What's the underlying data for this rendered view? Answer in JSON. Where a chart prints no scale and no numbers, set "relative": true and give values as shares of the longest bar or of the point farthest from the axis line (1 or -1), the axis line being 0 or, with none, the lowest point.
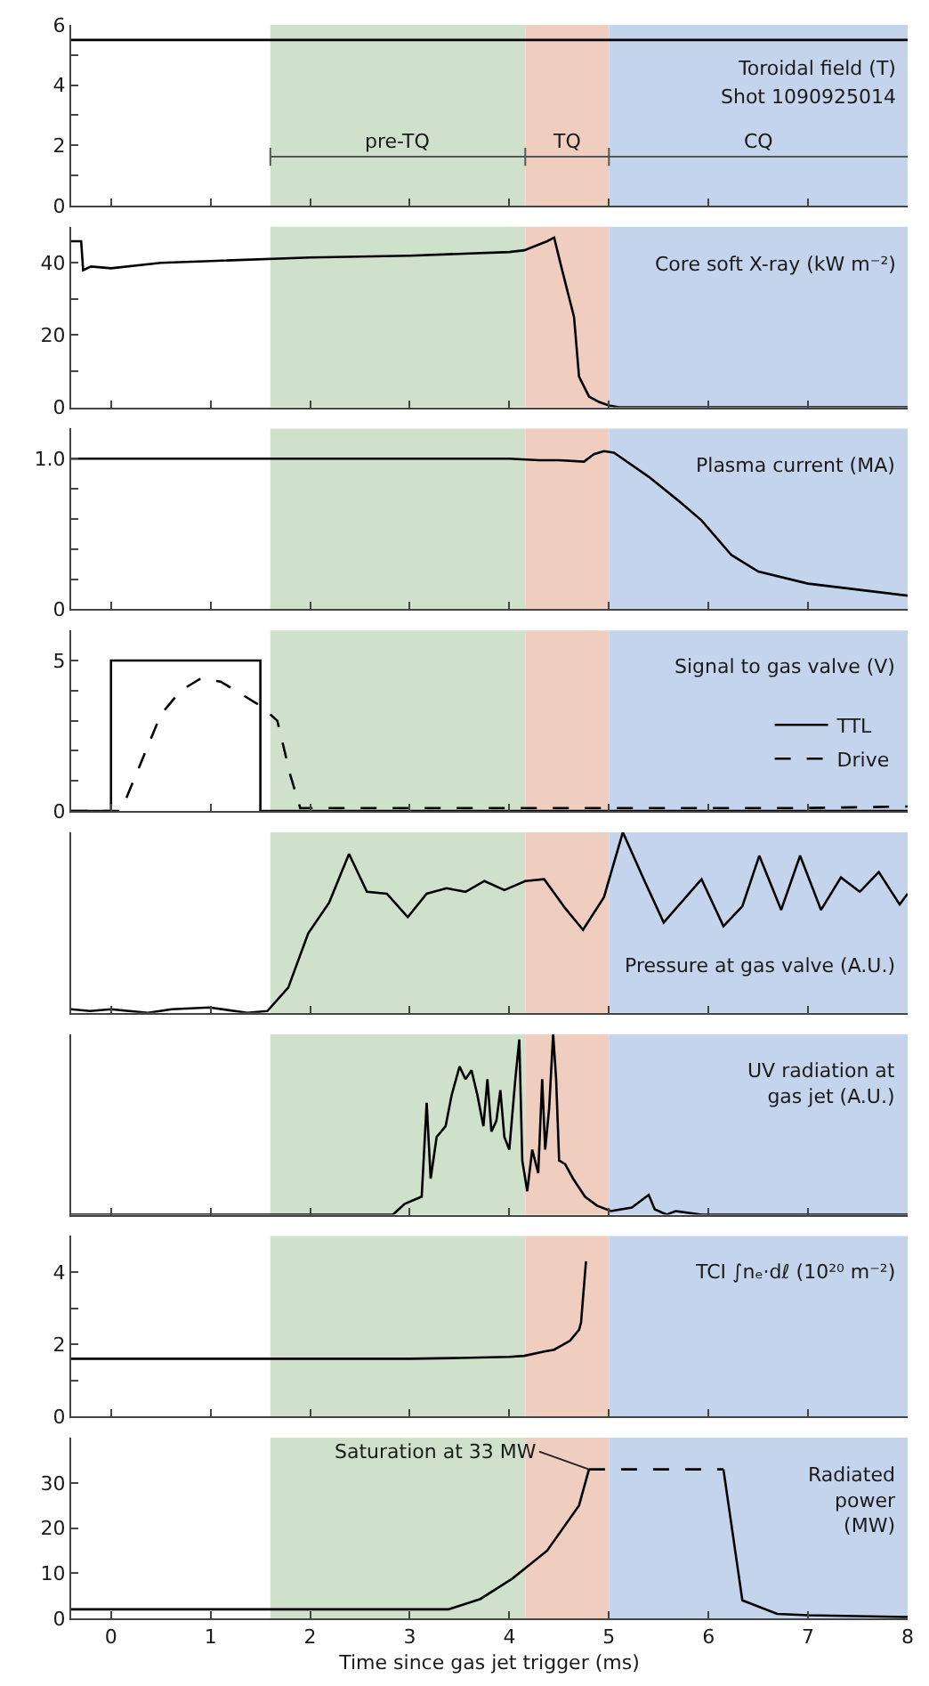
{
  "chart_data": [
    {
      "type": "line",
      "xlim": [
        -0.4,
        8
      ],
      "xticks": [
        0,
        1,
        2,
        3,
        4,
        5,
        6,
        7,
        8
      ],
      "ylim": [
        0,
        6
      ],
      "yticks": [
        0,
        {
          "value": 1,
          "label": null
        },
        2,
        {
          "value": 3,
          "label": null
        },
        4,
        {
          "value": 5,
          "label": null
        },
        6
      ],
      "tick_labels": "y",
      "line_style": "solid",
      "annotations": [
        "Toroidal field (T)",
        "Shot 1090925014"
      ],
      "bands": [
        {
          "axis": "x",
          "from": 1.6,
          "to": 4.16,
          "label": "pre-TQ",
          "color": "#cfe1cb"
        },
        {
          "axis": "x",
          "from": 4.16,
          "to": 5.0,
          "label": "TQ",
          "color": "#efcdbf"
        },
        {
          "axis": "x",
          "from": 5.0,
          "to": 8,
          "label": "CQ",
          "color": "#c5d4ed"
        }
      ],
      "series": [
        {
          "color": "#000000",
          "x": [
            -0.4,
            8
          ],
          "values": [
            5.5,
            5.5
          ]
        }
      ]
    },
    {
      "type": "line",
      "xlim": [
        -0.4,
        8
      ],
      "xticks": [
        0,
        1,
        2,
        3,
        4,
        5,
        6,
        7,
        8
      ],
      "ylim": [
        0,
        50
      ],
      "yticks": [
        0,
        {
          "value": 10,
          "label": null
        },
        20,
        {
          "value": 30,
          "label": null
        },
        40
      ],
      "tick_labels": "y",
      "line_style": "solid",
      "annotations": [
        "Core soft X-ray (kW m⁻²)"
      ],
      "bands": [
        {
          "axis": "x",
          "from": 1.6,
          "to": 4.16,
          "color": "#cfe1cb"
        },
        {
          "axis": "x",
          "from": 4.16,
          "to": 5.0,
          "color": "#efcdbf"
        },
        {
          "axis": "x",
          "from": 5.0,
          "to": 8,
          "color": "#c5d4ed"
        }
      ],
      "series": [
        {
          "color": "#000000",
          "x": [
            -0.4,
            -0.3,
            -0.28,
            -0.2,
            0,
            0.5,
            1,
            2,
            3,
            4,
            4.15,
            4.38,
            4.45,
            4.53,
            4.65,
            4.7,
            4.8,
            4.9,
            5.0,
            5.1,
            8
          ],
          "values": [
            46,
            46,
            38,
            39,
            38.5,
            40,
            40.5,
            41.5,
            42,
            43,
            43.5,
            46,
            47,
            38,
            25,
            8.5,
            3,
            1.5,
            0.5,
            0,
            0
          ]
        }
      ]
    },
    {
      "type": "line",
      "xlim": [
        -0.4,
        8
      ],
      "xticks": [
        0,
        1,
        2,
        3,
        4,
        5,
        6,
        7,
        8
      ],
      "ylim": [
        0,
        1.2
      ],
      "yticks": [
        0,
        {
          "value": 0.2,
          "label": null
        },
        {
          "value": 0.4,
          "label": null
        },
        {
          "value": 0.6,
          "label": null
        },
        {
          "value": 0.8,
          "label": null
        },
        {
          "value": 1,
          "label": "1.0"
        }
      ],
      "tick_labels": "y",
      "line_style": "solid",
      "annotations": [
        "Plasma current (MA)"
      ],
      "bands": [
        {
          "axis": "x",
          "from": 1.6,
          "to": 4.16,
          "color": "#cfe1cb"
        },
        {
          "axis": "x",
          "from": 4.16,
          "to": 5.0,
          "color": "#efcdbf"
        },
        {
          "axis": "x",
          "from": 5.0,
          "to": 8,
          "color": "#c5d4ed"
        }
      ],
      "series": [
        {
          "color": "#000000",
          "x": [
            -0.4,
            1,
            2,
            3,
            4,
            4.3,
            4.5,
            4.75,
            4.85,
            4.95,
            5.05,
            5.4,
            5.7,
            5.93,
            6.23,
            6.5,
            7.0,
            7.5,
            8
          ],
          "values": [
            1.0,
            1.0,
            1.0,
            1.0,
            1.0,
            0.99,
            0.99,
            0.98,
            1.03,
            1.05,
            1.04,
            0.88,
            0.72,
            0.59,
            0.36,
            0.25,
            0.17,
            0.13,
            0.09
          ]
        }
      ]
    },
    {
      "type": "line",
      "xlim": [
        -0.4,
        8
      ],
      "xticks": [
        0,
        1,
        2,
        3,
        4,
        5,
        6,
        7,
        8
      ],
      "ylim": [
        0,
        6
      ],
      "yticks": [
        0,
        {
          "value": 1,
          "label": null
        },
        {
          "value": 2,
          "label": null
        },
        {
          "value": 3,
          "label": null
        },
        {
          "value": 4,
          "label": null
        },
        5
      ],
      "tick_labels": "y",
      "legend": "right",
      "annotations": [
        "Signal to gas valve (V)"
      ],
      "bands": [
        {
          "axis": "x",
          "from": 1.6,
          "to": 4.16,
          "color": "#cfe1cb"
        },
        {
          "axis": "x",
          "from": 4.16,
          "to": 5.0,
          "color": "#efcdbf"
        },
        {
          "axis": "x",
          "from": 5.0,
          "to": 8,
          "color": "#c5d4ed"
        }
      ],
      "series": [
        {
          "name": "TTL",
          "color": "#000000",
          "line_style": "solid",
          "x": [
            -0.4,
            0,
            0,
            1.5,
            1.5,
            8
          ],
          "values": [
            0,
            0,
            5,
            5,
            0,
            0
          ]
        },
        {
          "name": "Drive",
          "color": "#000000",
          "line_style": "dashed",
          "x": [
            -0.4,
            0.1,
            0.3,
            0.5,
            0.7,
            0.9,
            1.1,
            1.3,
            1.5,
            1.67,
            1.8,
            1.9,
            3,
            5,
            7,
            8
          ],
          "values": [
            0,
            0,
            1.6,
            3.2,
            4.0,
            4.4,
            4.3,
            3.9,
            3.5,
            3.0,
            1.2,
            0.1,
            0.1,
            0.1,
            0.1,
            0.15
          ]
        }
      ]
    },
    {
      "type": "line",
      "xlim": [
        -0.4,
        8
      ],
      "xticks": [
        0,
        1,
        2,
        3,
        4,
        5,
        6,
        7,
        8
      ],
      "relative": true,
      "tick_labels": "y",
      "line_style": "solid",
      "annotations": [
        "Pressure at gas valve (A.U.)"
      ],
      "bands": [
        {
          "axis": "x",
          "from": 1.6,
          "to": 4.16,
          "color": "#cfe1cb"
        },
        {
          "axis": "x",
          "from": 4.16,
          "to": 5.0,
          "color": "#efcdbf"
        },
        {
          "axis": "x",
          "from": 5.0,
          "to": 8,
          "color": "#c5d4ed"
        }
      ],
      "series": [
        {
          "color": "#000000",
          "x": [
            -0.4,
            -0.21,
            0,
            0.37,
            0.61,
            0.99,
            1.37,
            1.57,
            1.78,
            1.98,
            2.19,
            2.39,
            2.57,
            2.77,
            2.98,
            3.17,
            3.37,
            3.56,
            3.75,
            3.95,
            4.16,
            4.35,
            4.56,
            4.74,
            4.95,
            5.14,
            5.35,
            5.55,
            5.93,
            6.15,
            6.34,
            6.51,
            6.73,
            6.92,
            7.13,
            7.33,
            7.52,
            7.71,
            7.92,
            8.0
          ],
          "values": [
            0.02,
            0.01,
            0.02,
            0,
            0.02,
            0.03,
            0,
            0.01,
            0.14,
            0.44,
            0.61,
            0.88,
            0.67,
            0.66,
            0.53,
            0.66,
            0.69,
            0.67,
            0.73,
            0.68,
            0.73,
            0.74,
            0.58,
            0.46,
            0.64,
            1.0,
            0.74,
            0.5,
            0.74,
            0.48,
            0.59,
            0.87,
            0.57,
            0.87,
            0.57,
            0.75,
            0.67,
            0.78,
            0.6,
            0.66
          ]
        }
      ]
    },
    {
      "type": "line",
      "xlim": [
        -0.4,
        8
      ],
      "xticks": [
        0,
        1,
        2,
        3,
        4,
        5,
        6,
        7,
        8
      ],
      "relative": true,
      "tick_labels": "y",
      "line_style": "solid",
      "annotations": [
        "UV radiation at\ngas jet (A.U.)"
      ],
      "bands": [
        {
          "axis": "x",
          "from": 1.6,
          "to": 4.16,
          "color": "#cfe1cb"
        },
        {
          "axis": "x",
          "from": 4.16,
          "to": 5.0,
          "color": "#efcdbf"
        },
        {
          "axis": "x",
          "from": 5.0,
          "to": 8,
          "color": "#c5d4ed"
        }
      ],
      "series": [
        {
          "color": "#000000",
          "x": [
            -0.4,
            2.83,
            2.95,
            3.12,
            3.17,
            3.21,
            3.27,
            3.36,
            3.42,
            3.5,
            3.56,
            3.62,
            3.68,
            3.74,
            3.78,
            3.82,
            3.87,
            3.91,
            3.95,
            4.0,
            4.06,
            4.1,
            4.13,
            4.18,
            4.23,
            4.29,
            4.33,
            4.36,
            4.4,
            4.44,
            4.47,
            4.5,
            4.56,
            4.64,
            4.76,
            4.88,
            5.02,
            5.23,
            5.4,
            5.46,
            5.58,
            5.67,
            5.93,
            8.0
          ],
          "values": [
            0,
            0,
            0.06,
            0.1,
            0.62,
            0.2,
            0.43,
            0.49,
            0.66,
            0.82,
            0.75,
            0.8,
            0.66,
            0.49,
            0.75,
            0.46,
            0.52,
            0.69,
            0.43,
            0.36,
            0.75,
            0.97,
            0.3,
            0.13,
            0.36,
            0.23,
            0.75,
            0.36,
            0.59,
            1.0,
            0.75,
            0.3,
            0.28,
            0.2,
            0.1,
            0.05,
            0.02,
            0.04,
            0.11,
            0.03,
            0,
            0.02,
            0,
            0
          ]
        }
      ]
    },
    {
      "type": "line",
      "xlim": [
        -0.4,
        8
      ],
      "xticks": [
        0,
        1,
        2,
        3,
        4,
        5,
        6,
        7,
        8
      ],
      "ylim": [
        0,
        5
      ],
      "yticks": [
        0,
        {
          "value": 1,
          "label": null
        },
        2,
        {
          "value": 3,
          "label": null
        },
        4
      ],
      "tick_labels": "y",
      "line_style": "solid",
      "annotations": [
        "TCI ∫nₑ·dℓ (10²⁰ m⁻²)"
      ],
      "bands": [
        {
          "axis": "x",
          "from": 1.6,
          "to": 4.16,
          "color": "#cfe1cb"
        },
        {
          "axis": "x",
          "from": 4.16,
          "to": 5.0,
          "color": "#efcdbf"
        },
        {
          "axis": "x",
          "from": 5.0,
          "to": 8,
          "color": "#c5d4ed"
        }
      ],
      "series": [
        {
          "color": "#000000",
          "x": [
            -0.4,
            1,
            2,
            3,
            3.5,
            4.0,
            4.15,
            4.35,
            4.45,
            4.61,
            4.7,
            4.72,
            4.77
          ],
          "values": [
            1.6,
            1.6,
            1.6,
            1.6,
            1.62,
            1.65,
            1.68,
            1.8,
            1.85,
            2.1,
            2.4,
            2.6,
            4.3
          ]
        }
      ]
    },
    {
      "type": "line",
      "xlim": [
        -0.4,
        8
      ],
      "xticks": [
        0,
        1,
        2,
        3,
        4,
        5,
        6,
        7,
        8
      ],
      "ylim": [
        0,
        40
      ],
      "yticks": [
        0,
        10,
        20,
        30
      ],
      "xlabel": "Time since gas jet trigger (ms)",
      "annotations": [
        "Radiated\npower\n(MW)",
        {
          "text": "Saturation at 33 MW",
          "x": 4.8,
          "y": 33
        }
      ],
      "bands": [
        {
          "axis": "x",
          "from": 1.6,
          "to": 4.16,
          "color": "#cfe1cb"
        },
        {
          "axis": "x",
          "from": 4.16,
          "to": 5.0,
          "color": "#efcdbf"
        },
        {
          "axis": "x",
          "from": 5.0,
          "to": 8,
          "color": "#c5d4ed"
        }
      ],
      "series": [
        {
          "color": "#000000",
          "line_style": "solid",
          "x": [
            -0.4,
            1,
            2,
            3,
            3.39,
            3.71,
            4.03,
            4.38,
            4.7,
            4.8
          ],
          "values": [
            2,
            2,
            2,
            2,
            2,
            4.3,
            8.8,
            15,
            25,
            33
          ]
        },
        {
          "color": "#000000",
          "line_style": "dashed",
          "x": [
            4.8,
            6.15
          ],
          "values": [
            33,
            33
          ]
        },
        {
          "color": "#000000",
          "line_style": "solid",
          "x": [
            6.15,
            6.34,
            6.69,
            7.0,
            8
          ],
          "values": [
            33,
            4,
            1,
            0.7,
            0.3
          ]
        }
      ]
    }
  ]
}
